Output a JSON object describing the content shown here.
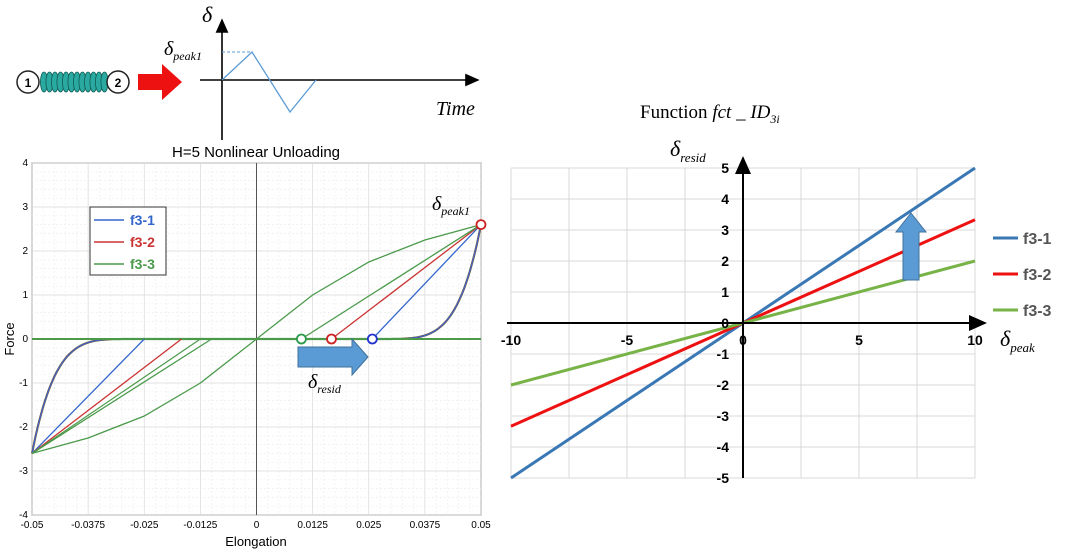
{
  "top_diagram": {
    "node1_label": "1",
    "node2_label": "2",
    "y_symbol": "δ",
    "peak_symbol": "δ",
    "peak_subscript": "peak1",
    "x_label": "Time",
    "arrow_color": "#ee1111",
    "spring_color": "#2aa9a0"
  },
  "right_title": {
    "prefix": "Function ",
    "fct": "fct",
    "sep": " _ ",
    "id": "ID",
    "sub": "3i"
  },
  "left_annotations": {
    "peak_symbol": "δ",
    "peak_subscript": "peak1",
    "resid_symbol": "δ",
    "resid_subscript": "resid",
    "arrow_color": "#5b9bd5"
  },
  "right_annotations": {
    "y_symbol": "δ",
    "y_subscript": "resid",
    "x_symbol": "δ",
    "x_subscript": "peak",
    "arrow_color": "#5b9bd5"
  },
  "chart_data": [
    {
      "type": "line",
      "title": "H=5 Nonlinear Unloading",
      "xlabel": "Elongation",
      "ylabel": "Force",
      "xlim": [
        -0.05,
        0.05
      ],
      "ylim": [
        -4,
        4
      ],
      "x_ticks": [
        "-0.05",
        "-0.0375",
        "-0.025",
        "-0.0125",
        "0",
        "0.0125",
        "0.025",
        "0.0375",
        "0.05"
      ],
      "y_ticks": [
        "-4",
        "-3",
        "-2",
        "-1",
        "0",
        "1",
        "2",
        "3",
        "4"
      ],
      "grid": true,
      "legend_position": "upper-left",
      "series": [
        {
          "name": "f3-1",
          "color": "#3366cc",
          "x": [
            -0.05,
            -0.025,
            0,
            0.025,
            0.05
          ],
          "y": [
            -2.6,
            0,
            0,
            0,
            2.6
          ],
          "unloading": [
            [
              0.05,
              2.6
            ],
            [
              0.0258,
              0
            ]
          ],
          "reloading": [
            [
              -0.05,
              -2.6
            ],
            [
              -0.025,
              0
            ]
          ]
        },
        {
          "name": "f3-2",
          "color": "#cc3333",
          "unloading": [
            [
              0.05,
              2.6
            ],
            [
              0.0167,
              0
            ]
          ],
          "reloading": [
            [
              -0.05,
              -2.6
            ],
            [
              -0.0167,
              0
            ]
          ]
        },
        {
          "name": "f3-3",
          "color": "#4a9a4a",
          "backbone": [
            [
              -0.05,
              -2.6
            ],
            [
              -0.0375,
              -2.25
            ],
            [
              -0.025,
              -1.75
            ],
            [
              -0.0125,
              -1.0
            ],
            [
              0,
              0
            ],
            [
              0.0125,
              1.0
            ],
            [
              0.025,
              1.75
            ],
            [
              0.0375,
              2.25
            ],
            [
              0.05,
              2.6
            ]
          ],
          "unloading": [
            [
              0.05,
              2.6
            ],
            [
              0.01,
              0
            ]
          ],
          "reloading": [
            [
              -0.05,
              -2.6
            ],
            [
              -0.01,
              0
            ]
          ]
        }
      ],
      "markers": [
        {
          "series": "f3-3",
          "x": 0.01,
          "y": 0
        },
        {
          "series": "f3-2",
          "x": 0.0167,
          "y": 0
        },
        {
          "series": "f3-1",
          "x": 0.0258,
          "y": 0
        },
        {
          "series": "peak",
          "x": 0.05,
          "y": 2.6
        }
      ]
    },
    {
      "type": "line",
      "xlim": [
        -10,
        10
      ],
      "ylim": [
        -5,
        5
      ],
      "x_ticks": [
        "-10",
        "-5",
        "0",
        "5",
        "10"
      ],
      "y_ticks": [
        "-5",
        "-4",
        "-3",
        "-2",
        "-1",
        "0",
        "1",
        "2",
        "3",
        "4",
        "5"
      ],
      "grid": true,
      "legend_position": "right",
      "series": [
        {
          "name": "f3-1",
          "color": "#3a78b5",
          "x": [
            -10,
            10
          ],
          "y": [
            -5,
            5
          ]
        },
        {
          "name": "f3-2",
          "color": "#ee1111",
          "x": [
            -10,
            10
          ],
          "y": [
            -3.33,
            3.33
          ]
        },
        {
          "name": "f3-3",
          "color": "#77b347",
          "x": [
            -10,
            10
          ],
          "y": [
            -2,
            2
          ]
        }
      ]
    }
  ]
}
